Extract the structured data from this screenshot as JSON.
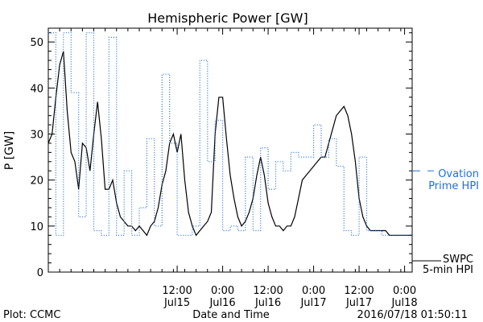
{
  "chart_data": {
    "type": "line",
    "title": "Hemispheric Power [GW]",
    "ylabel": "P [GW]",
    "xlabel": "Date and Time",
    "ylim": [
      0,
      53
    ],
    "xlim": [
      "2016-07-14 02:00",
      "2016-07-18 02:00"
    ],
    "yticks": [
      0,
      10,
      20,
      30,
      40,
      50
    ],
    "xticks": [
      {
        "time": "2016-07-15 12:00",
        "label1": "12:00",
        "label2": "Jul15"
      },
      {
        "time": "2016-07-16 00:00",
        "label1": "0:00",
        "label2": "Jul16"
      },
      {
        "time": "2016-07-16 12:00",
        "label1": "12:00",
        "label2": "Jul16"
      },
      {
        "time": "2016-07-17 00:00",
        "label1": "0:00",
        "label2": "Jul17"
      },
      {
        "time": "2016-07-17 12:00",
        "label1": "12:00",
        "label2": "Jul17"
      },
      {
        "time": "2016-07-18 00:00",
        "label1": "0:00",
        "label2": "Jul18"
      }
    ],
    "series": [
      {
        "name": "SWPC 5-min HPI",
        "label_lines": [
          "SWPC",
          "5-min HPI"
        ],
        "style": "solid",
        "color": "#000000",
        "x": [
          "2016-07-14 02:00",
          "2016-07-14 03:00",
          "2016-07-14 04:00",
          "2016-07-14 05:00",
          "2016-07-14 06:00",
          "2016-07-14 07:00",
          "2016-07-14 08:00",
          "2016-07-14 09:00",
          "2016-07-14 10:00",
          "2016-07-14 11:00",
          "2016-07-14 12:00",
          "2016-07-14 13:00",
          "2016-07-14 14:00",
          "2016-07-14 15:00",
          "2016-07-14 16:00",
          "2016-07-14 17:00",
          "2016-07-14 18:00",
          "2016-07-14 19:00",
          "2016-07-14 20:00",
          "2016-07-14 21:00",
          "2016-07-14 22:00",
          "2016-07-14 23:00",
          "2016-07-15 00:00",
          "2016-07-15 01:00",
          "2016-07-15 02:00",
          "2016-07-15 03:00",
          "2016-07-15 04:00",
          "2016-07-15 05:00",
          "2016-07-15 06:00",
          "2016-07-15 07:00",
          "2016-07-15 08:00",
          "2016-07-15 09:00",
          "2016-07-15 10:00",
          "2016-07-15 11:00",
          "2016-07-15 12:00",
          "2016-07-15 13:00",
          "2016-07-15 14:00",
          "2016-07-15 15:00",
          "2016-07-15 16:00",
          "2016-07-15 17:00",
          "2016-07-15 18:00",
          "2016-07-15 19:00",
          "2016-07-15 20:00",
          "2016-07-15 21:00",
          "2016-07-15 22:00",
          "2016-07-15 23:00",
          "2016-07-16 00:00",
          "2016-07-16 01:00",
          "2016-07-16 02:00",
          "2016-07-16 03:00",
          "2016-07-16 04:00",
          "2016-07-16 05:00",
          "2016-07-16 06:00",
          "2016-07-16 07:00",
          "2016-07-16 08:00",
          "2016-07-16 09:00",
          "2016-07-16 10:00",
          "2016-07-16 11:00",
          "2016-07-16 12:00",
          "2016-07-16 13:00",
          "2016-07-16 14:00",
          "2016-07-16 15:00",
          "2016-07-16 16:00",
          "2016-07-16 17:00",
          "2016-07-16 18:00",
          "2016-07-16 19:00",
          "2016-07-16 20:00",
          "2016-07-16 21:00",
          "2016-07-16 22:00",
          "2016-07-16 23:00",
          "2016-07-17 00:00",
          "2016-07-17 01:00",
          "2016-07-17 02:00",
          "2016-07-17 03:00",
          "2016-07-17 04:00",
          "2016-07-17 05:00",
          "2016-07-17 06:00",
          "2016-07-17 07:00",
          "2016-07-17 08:00",
          "2016-07-17 09:00",
          "2016-07-17 10:00",
          "2016-07-17 11:00",
          "2016-07-17 12:00",
          "2016-07-17 13:00",
          "2016-07-17 14:00",
          "2016-07-17 15:00",
          "2016-07-17 16:00",
          "2016-07-17 17:00",
          "2016-07-17 18:00",
          "2016-07-17 19:00",
          "2016-07-17 20:00",
          "2016-07-17 21:00",
          "2016-07-17 22:00",
          "2016-07-17 23:00",
          "2016-07-18 00:00",
          "2016-07-18 01:00",
          "2016-07-18 02:00"
        ],
        "y": [
          28,
          30,
          38,
          45,
          48,
          35,
          26,
          24,
          18,
          28,
          27,
          22,
          30,
          37,
          29,
          18,
          18,
          20,
          15,
          12,
          11,
          10,
          10,
          9,
          10,
          9,
          8,
          10,
          11,
          14,
          19,
          22,
          28,
          30,
          26,
          30,
          20,
          13,
          10,
          8,
          9,
          10,
          11,
          13,
          30,
          38,
          38,
          29,
          21,
          16,
          12,
          10,
          11,
          13,
          16,
          21,
          25,
          21,
          15,
          12,
          10,
          10,
          9,
          10,
          10,
          12,
          16,
          20,
          21,
          22,
          23,
          24,
          25,
          25,
          28,
          31,
          34,
          35,
          36,
          34,
          30,
          24,
          16,
          12,
          10,
          9,
          9,
          9,
          9,
          9,
          8,
          8,
          8,
          8,
          8,
          8,
          8
        ]
      },
      {
        "name": "Ovation Prime HPI",
        "label_lines": [
          "Ovation",
          "Prime HPI"
        ],
        "style": "dotted",
        "color": "#1f6fd8",
        "x": [
          "2016-07-14 02:00",
          "2016-07-14 04:00",
          "2016-07-14 06:00",
          "2016-07-14 08:00",
          "2016-07-14 10:00",
          "2016-07-14 12:00",
          "2016-07-14 14:00",
          "2016-07-14 16:00",
          "2016-07-14 18:00",
          "2016-07-14 20:00",
          "2016-07-14 22:00",
          "2016-07-15 00:00",
          "2016-07-15 02:00",
          "2016-07-15 04:00",
          "2016-07-15 06:00",
          "2016-07-15 08:00",
          "2016-07-15 10:00",
          "2016-07-15 12:00",
          "2016-07-15 14:00",
          "2016-07-15 16:00",
          "2016-07-15 18:00",
          "2016-07-15 20:00",
          "2016-07-15 22:00",
          "2016-07-16 00:00",
          "2016-07-16 02:00",
          "2016-07-16 04:00",
          "2016-07-16 06:00",
          "2016-07-16 08:00",
          "2016-07-16 10:00",
          "2016-07-16 12:00",
          "2016-07-16 14:00",
          "2016-07-16 16:00",
          "2016-07-16 18:00",
          "2016-07-16 20:00",
          "2016-07-16 22:00",
          "2016-07-17 00:00",
          "2016-07-17 02:00",
          "2016-07-17 04:00",
          "2016-07-17 06:00",
          "2016-07-17 08:00",
          "2016-07-17 10:00",
          "2016-07-17 12:00",
          "2016-07-17 14:00",
          "2016-07-17 16:00",
          "2016-07-17 18:00",
          "2016-07-17 20:00",
          "2016-07-17 22:00",
          "2016-07-18 00:00",
          "2016-07-18 02:00"
        ],
        "y": [
          52,
          8,
          52,
          39,
          12,
          52,
          9,
          8,
          51,
          8,
          22,
          8,
          14,
          29,
          10,
          43,
          28,
          8,
          8,
          10,
          46,
          24,
          33,
          9,
          10,
          9,
          25,
          9,
          27,
          18,
          24,
          22,
          26,
          25,
          25,
          32,
          25,
          29,
          23,
          9,
          8,
          25,
          9,
          9,
          8,
          8,
          8,
          8,
          8
        ]
      }
    ],
    "footer": {
      "left": "Plot: CCMC",
      "center": "Date and Time",
      "right": "2016/07/18 01:50:11"
    },
    "colors": {
      "observed": "#000000",
      "model": "#1f6fd8",
      "axes": "#000000",
      "background": "#ffffff"
    }
  }
}
